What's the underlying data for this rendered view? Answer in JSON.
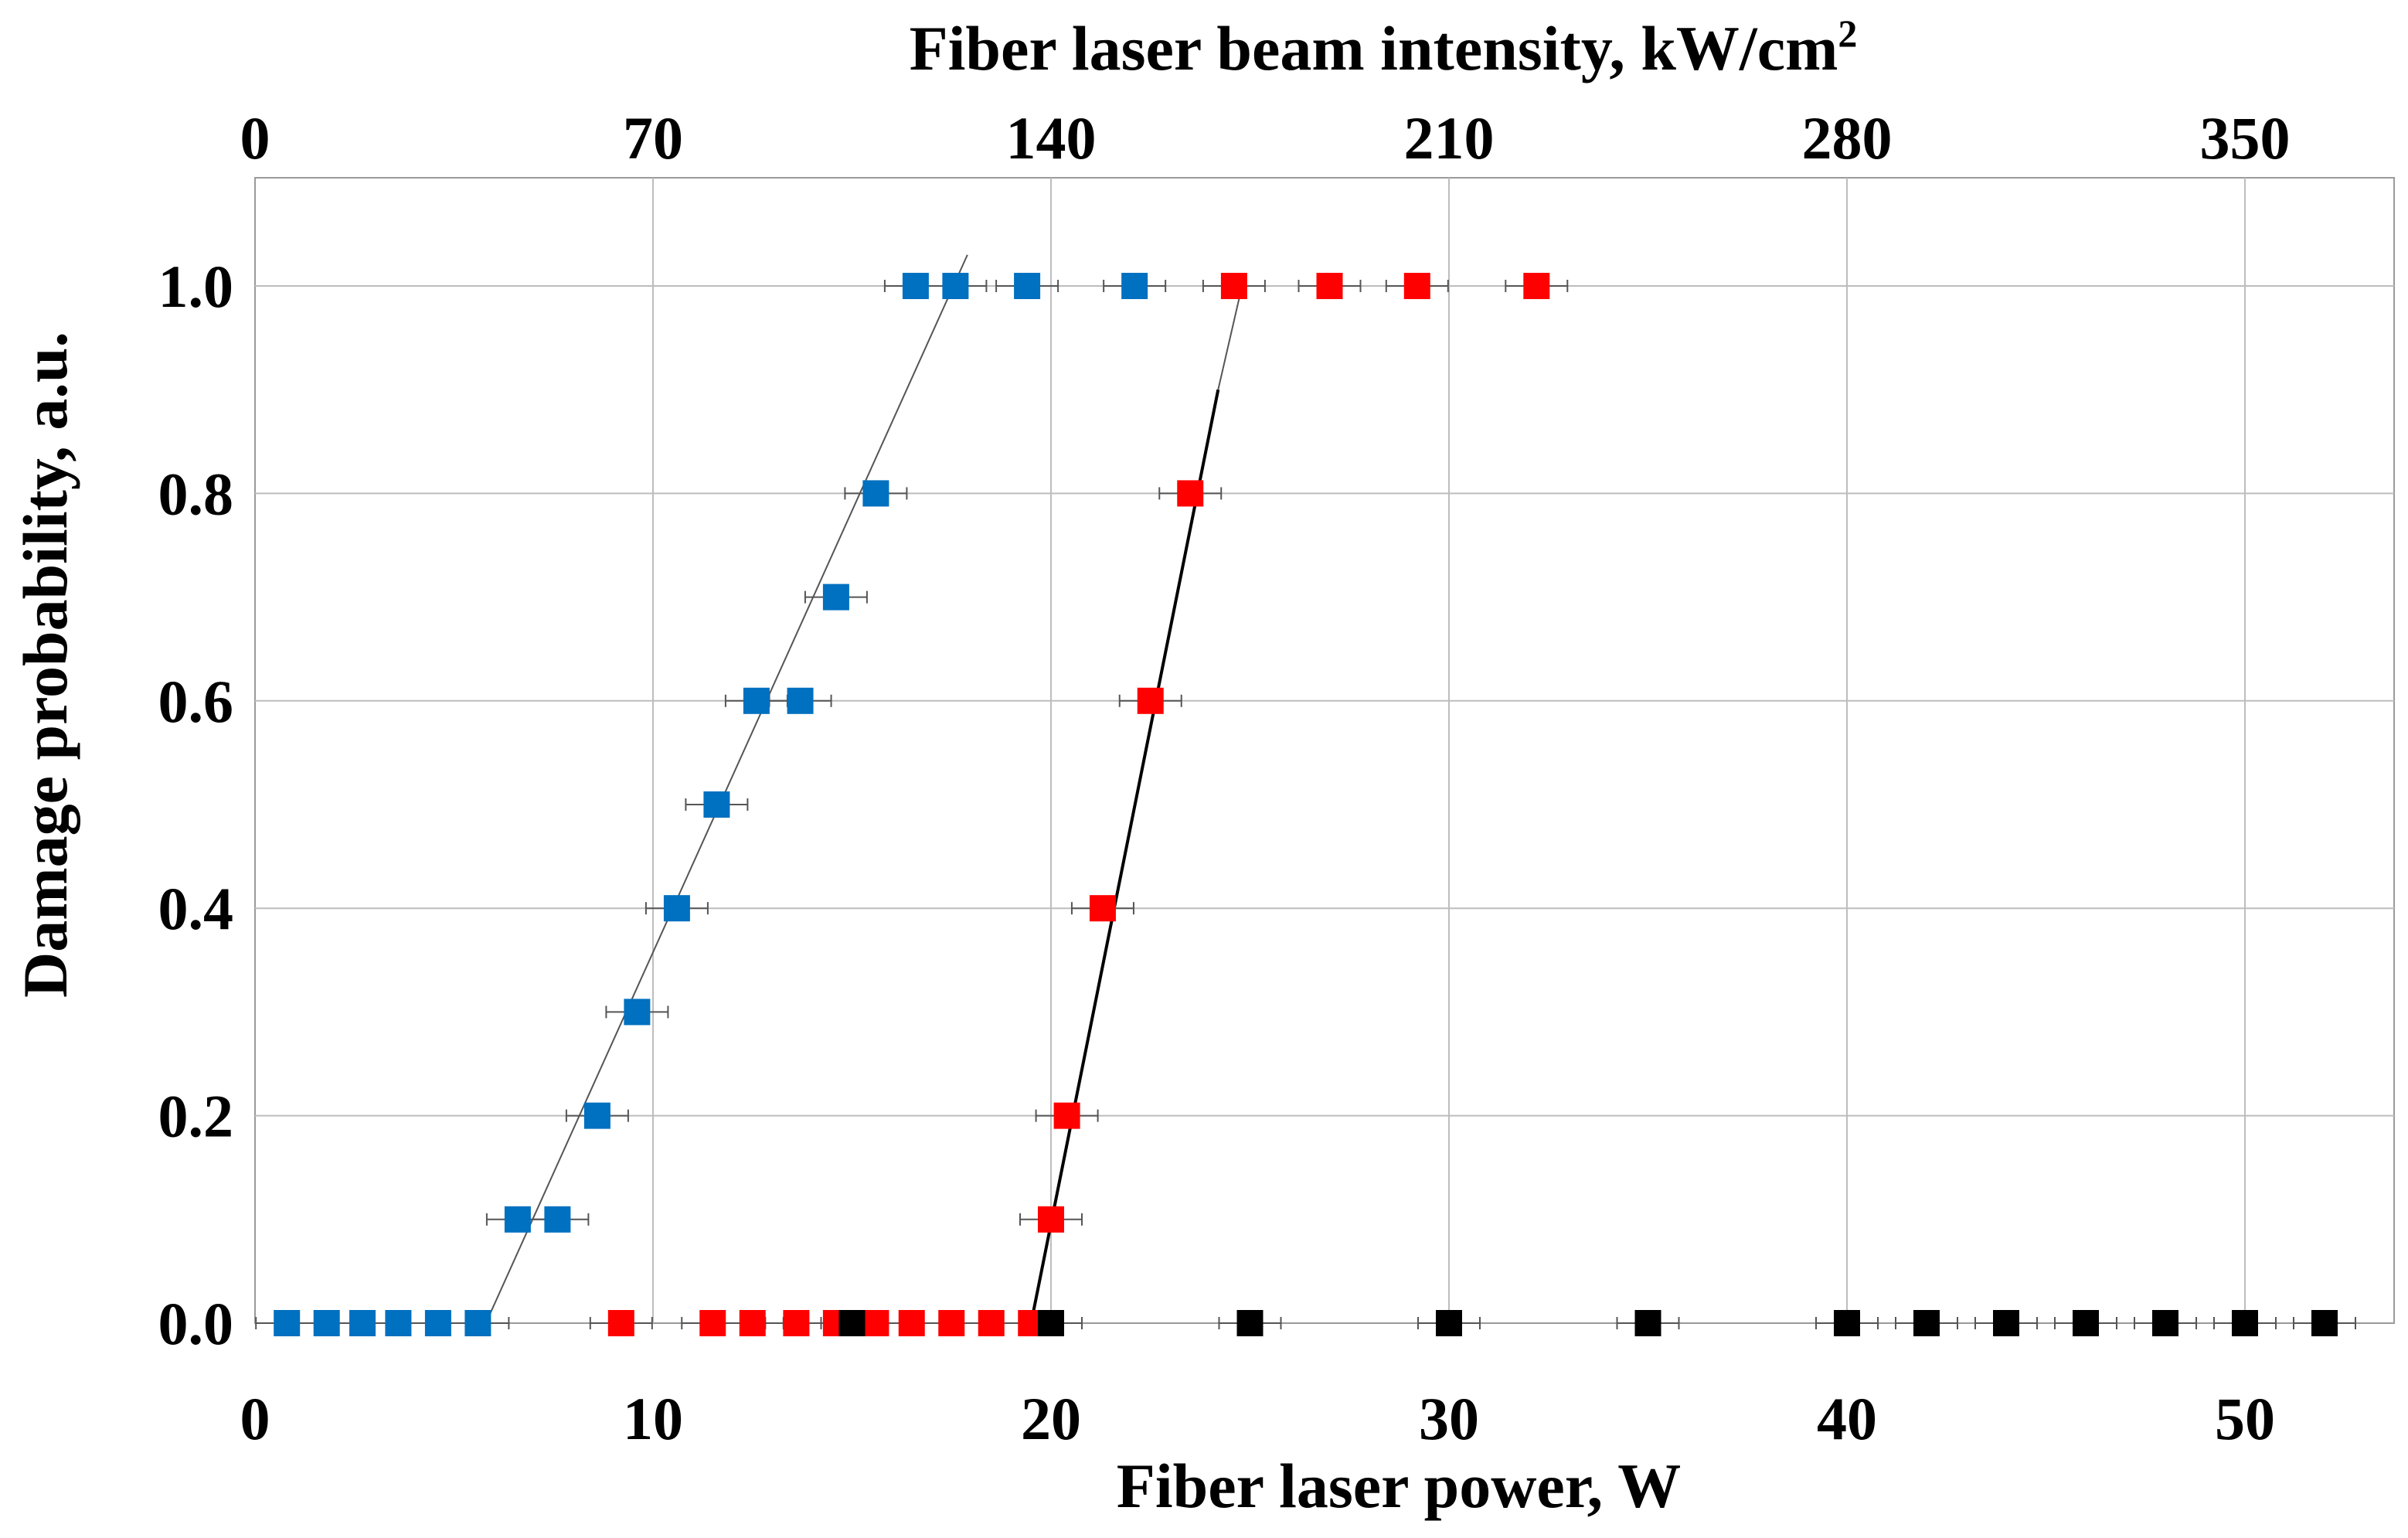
{
  "chart_data": {
    "type": "scatter",
    "title": "",
    "xlabel": "Fiber laser power, W",
    "ylabel": "Damage probability, a.u.",
    "x2label": "Fiber laser beam intensity, kW/cm",
    "x2label_sup": "2",
    "xlim": [
      0,
      54
    ],
    "ylim": [
      0,
      1.1
    ],
    "x_ticks": [
      0,
      10,
      20,
      30,
      40,
      50
    ],
    "x_tick_labels": [
      "0",
      "10",
      "20",
      "30",
      "40",
      "50"
    ],
    "y_ticks": [
      0.0,
      0.2,
      0.4,
      0.6,
      0.8,
      1.0
    ],
    "y_tick_labels": [
      "0.0",
      "0.2",
      "0.4",
      "0.6",
      "0.8",
      "1.0"
    ],
    "x2_ticks_power": [
      0,
      10,
      20,
      30,
      40,
      50
    ],
    "x2_tick_labels": [
      "0",
      "70",
      "140",
      "210",
      "280",
      "350"
    ],
    "grid": true,
    "series": [
      {
        "name": "blue",
        "color": "#0070C0",
        "points": [
          {
            "x": 0.8,
            "y": 0.0
          },
          {
            "x": 1.8,
            "y": 0.0
          },
          {
            "x": 2.7,
            "y": 0.0
          },
          {
            "x": 3.6,
            "y": 0.0
          },
          {
            "x": 4.6,
            "y": 0.0
          },
          {
            "x": 5.6,
            "y": 0.0
          },
          {
            "x": 6.6,
            "y": 0.1
          },
          {
            "x": 7.6,
            "y": 0.1
          },
          {
            "x": 8.6,
            "y": 0.2
          },
          {
            "x": 9.6,
            "y": 0.3
          },
          {
            "x": 10.6,
            "y": 0.4
          },
          {
            "x": 11.6,
            "y": 0.5
          },
          {
            "x": 12.6,
            "y": 0.6
          },
          {
            "x": 13.7,
            "y": 0.6
          },
          {
            "x": 14.6,
            "y": 0.7
          },
          {
            "x": 15.6,
            "y": 0.8
          },
          {
            "x": 16.6,
            "y": 1.0
          },
          {
            "x": 17.6,
            "y": 1.0
          },
          {
            "x": 19.4,
            "y": 1.0
          },
          {
            "x": 22.1,
            "y": 1.0
          }
        ],
        "fit": {
          "x1": 5.8,
          "y1": 0.0,
          "x2": 17.9,
          "y2": 1.03,
          "color": "#555555",
          "width": 2
        }
      },
      {
        "name": "red",
        "color": "#FF0000",
        "points": [
          {
            "x": 9.2,
            "y": 0.0
          },
          {
            "x": 11.5,
            "y": 0.0
          },
          {
            "x": 12.5,
            "y": 0.0
          },
          {
            "x": 13.6,
            "y": 0.0
          },
          {
            "x": 14.6,
            "y": 0.0
          },
          {
            "x": 15.6,
            "y": 0.0
          },
          {
            "x": 16.5,
            "y": 0.0
          },
          {
            "x": 17.5,
            "y": 0.0
          },
          {
            "x": 18.5,
            "y": 0.0
          },
          {
            "x": 19.5,
            "y": 0.0
          },
          {
            "x": 20.0,
            "y": 0.1
          },
          {
            "x": 20.4,
            "y": 0.2
          },
          {
            "x": 21.3,
            "y": 0.4
          },
          {
            "x": 22.5,
            "y": 0.6
          },
          {
            "x": 23.5,
            "y": 0.8
          },
          {
            "x": 24.6,
            "y": 1.0
          },
          {
            "x": 27.0,
            "y": 1.0
          },
          {
            "x": 29.2,
            "y": 1.0
          },
          {
            "x": 32.2,
            "y": 1.0
          }
        ],
        "fit": {
          "x1": 19.5,
          "y1": 0.0,
          "x2": 24.2,
          "y2": 0.9,
          "color": "#000000",
          "width": 4
        },
        "fit_extension": {
          "x1": 24.2,
          "y1": 0.9,
          "x2": 24.8,
          "y2": 1.0,
          "color": "#555555",
          "width": 2
        }
      },
      {
        "name": "black",
        "color": "#000000",
        "points": [
          {
            "x": 15.0,
            "y": 0.0
          },
          {
            "x": 20.0,
            "y": 0.0
          },
          {
            "x": 25.0,
            "y": 0.0
          },
          {
            "x": 30.0,
            "y": 0.0
          },
          {
            "x": 35.0,
            "y": 0.0
          },
          {
            "x": 40.0,
            "y": 0.0
          },
          {
            "x": 42.0,
            "y": 0.0
          },
          {
            "x": 44.0,
            "y": 0.0
          },
          {
            "x": 46.0,
            "y": 0.0
          },
          {
            "x": 48.0,
            "y": 0.0
          },
          {
            "x": 50.0,
            "y": 0.0
          },
          {
            "x": 52.0,
            "y": 0.0
          }
        ]
      }
    ]
  }
}
